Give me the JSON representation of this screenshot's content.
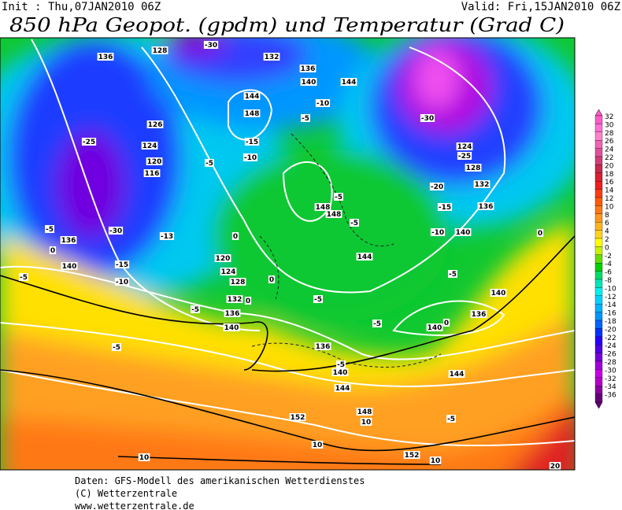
{
  "header": {
    "init": "Init : Thu,07JAN2010 06Z",
    "valid": "Valid: Fri,15JAN2010 06Z",
    "title": "850 hPa Geopot. (gpdm) und Temperatur (Grad C)"
  },
  "legend": {
    "labels": [
      32,
      30,
      28,
      26,
      24,
      22,
      20,
      18,
      16,
      14,
      12,
      10,
      8,
      6,
      4,
      2,
      0,
      -2,
      -4,
      -6,
      -8,
      -10,
      -12,
      -14,
      -16,
      -18,
      -20,
      -22,
      -24,
      -26,
      -28,
      -30,
      -32,
      -34,
      -36
    ],
    "colors": [
      "#ff5ac8",
      "#ff6ed2",
      "#ff82c8",
      "#f064b4",
      "#e0509c",
      "#d23c78",
      "#c82850",
      "#dc1e32",
      "#f01e1e",
      "#ff3c14",
      "#ff5a0a",
      "#ff7814",
      "#ff961e",
      "#ffb41e",
      "#ffd21e",
      "#ffff00",
      "#c8f000",
      "#64dc00",
      "#00d200",
      "#00dc64",
      "#00e6b4",
      "#00f0f0",
      "#00d2ff",
      "#00b4ff",
      "#0096ff",
      "#0064ff",
      "#0032ff",
      "#2800ff",
      "#5000e6",
      "#7800dc",
      "#a000dc",
      "#c800e6",
      "#b400c8",
      "#8c00a0",
      "#640078"
    ]
  },
  "map": {
    "labels": [
      "136",
      "128",
      "-30",
      "132",
      "136",
      "140",
      "144",
      "144",
      "148",
      "-10",
      "-5",
      "-15",
      "-10",
      "-30",
      "124",
      "-25",
      "128",
      "-20",
      "132",
      "136",
      "-15",
      "-10",
      "140",
      "0",
      "-25",
      "126",
      "124",
      "120",
      "116",
      "-5",
      "-5",
      "148",
      "148",
      "-5",
      "-30",
      "136",
      "-13",
      "0",
      "-5",
      "0",
      "140",
      "-15",
      "120",
      "124",
      "128",
      "-10",
      "0",
      "144",
      "-5",
      "-5",
      "132",
      "0",
      "-5",
      "-5",
      "136",
      "140",
      "-5",
      "140",
      "136",
      "0",
      "140",
      "-5",
      "136",
      "-5",
      "140",
      "144",
      "144",
      "152",
      "148",
      "10",
      "-5",
      "10",
      "152",
      "10",
      "10",
      "20"
    ]
  },
  "footer": {
    "lines": [
      "Daten: GFS-Modell des amerikanischen Wetterdienstes",
      "(C) Wetterzentrale",
      "www.wetterzentrale.de"
    ]
  }
}
